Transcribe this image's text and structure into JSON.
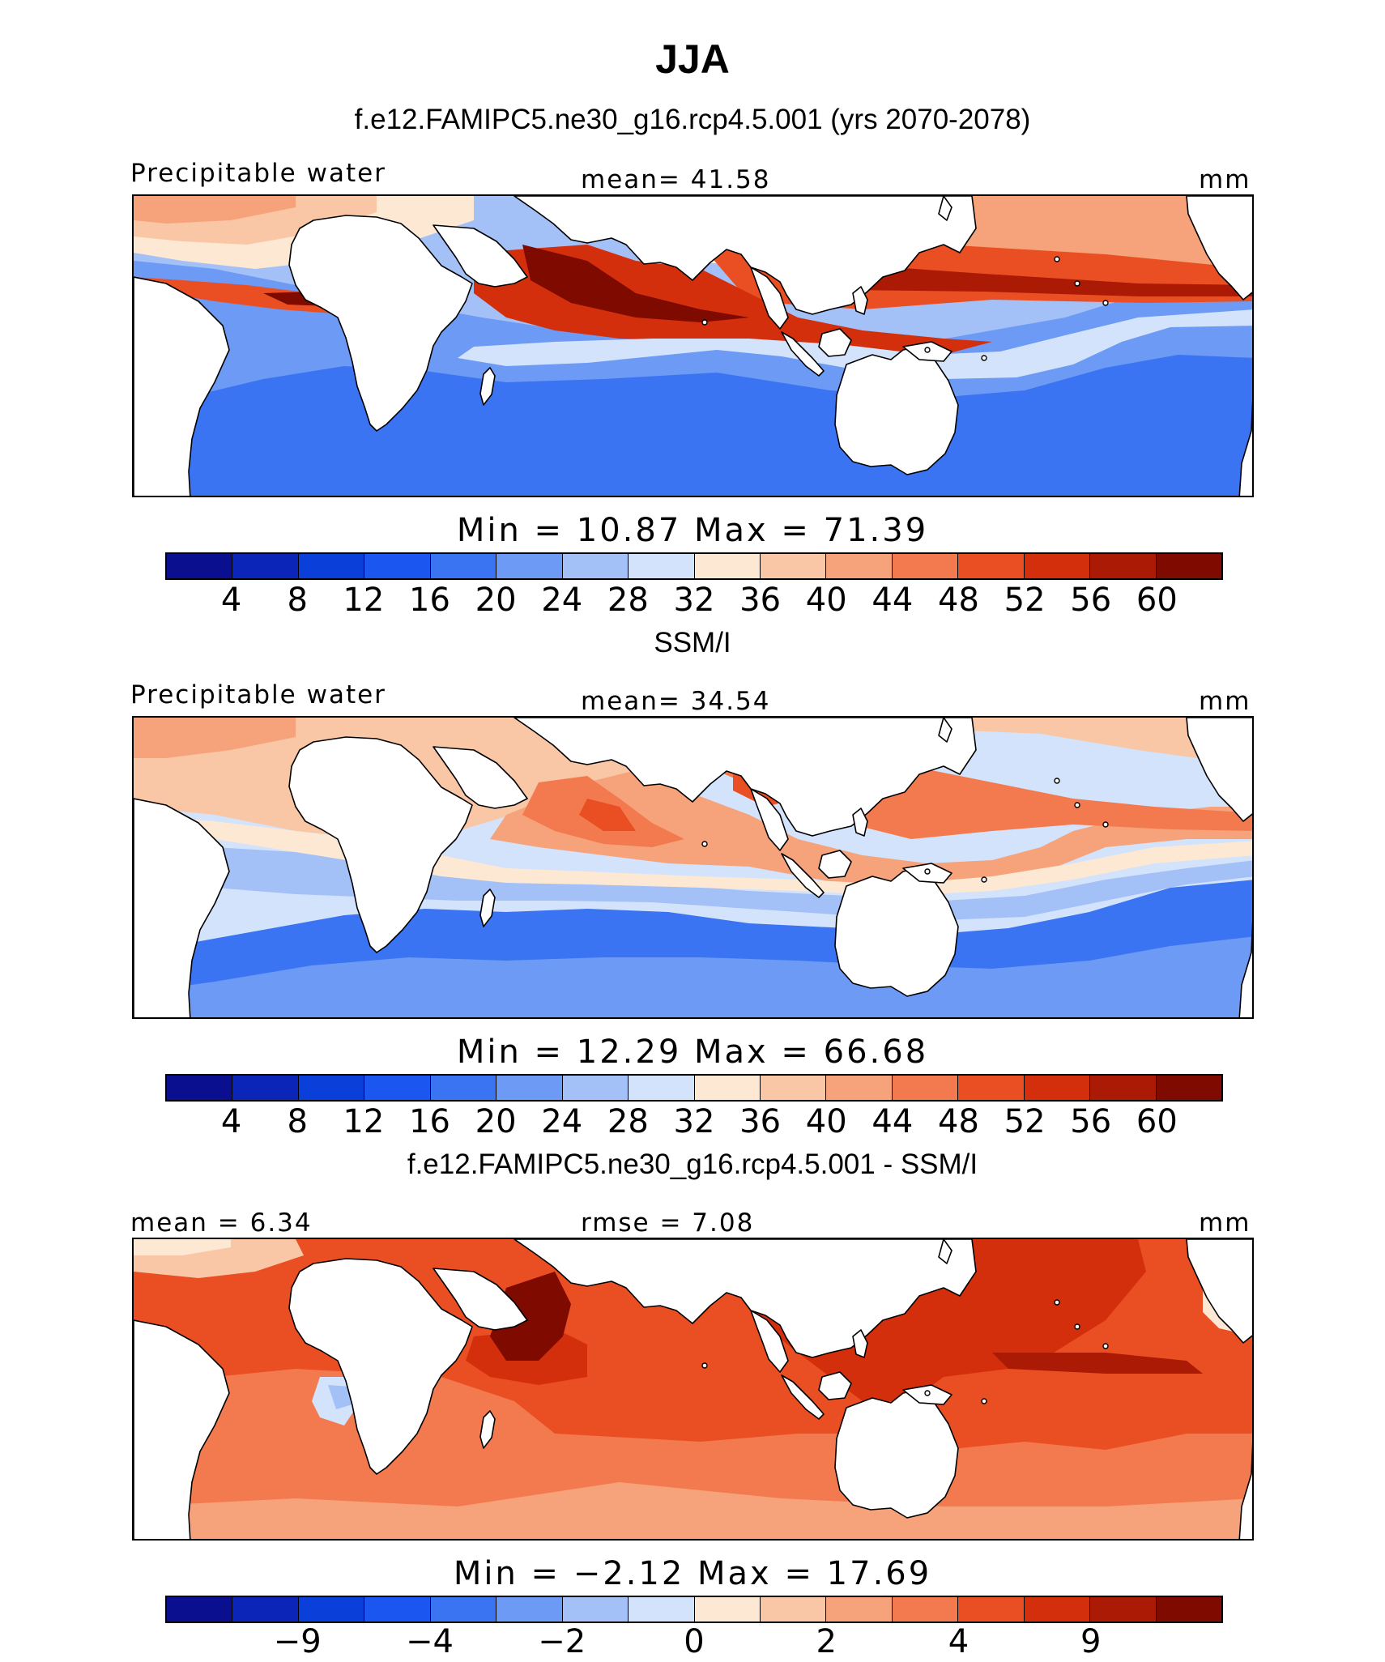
{
  "title": "JJA",
  "colors": {
    "scale": [
      "#0a0f8f",
      "#0a25b8",
      "#0b3fd9",
      "#1c56f0",
      "#3b74f2",
      "#6d9af5",
      "#a3c0f7",
      "#d3e3fb",
      "#fde8d3",
      "#f9c7a6",
      "#f6a27a",
      "#f37a4e",
      "#ea4f23",
      "#d42f0c",
      "#aa1a04",
      "#7e0a00"
    ],
    "land": "#ffffff",
    "coast": "#000000"
  },
  "panels": [
    {
      "title": "f.e12.FAMIPC5.ne30_g16.rcp4.5.001 (yrs 2070-2078)",
      "left_label": "Precipitable water",
      "center_label": "mean=   41.58",
      "units": "mm",
      "minmax": "Min =    10.87  Max =    71.39",
      "colorbar_ticks": [
        "4",
        "8",
        "12",
        "16",
        "20",
        "24",
        "28",
        "32",
        "36",
        "40",
        "44",
        "48",
        "52",
        "56",
        "60"
      ]
    },
    {
      "title": "SSM/I",
      "left_label": "Precipitable water",
      "center_label": "mean=   34.54",
      "units": "mm",
      "minmax": "Min =    12.29  Max =    66.68",
      "colorbar_ticks": [
        "4",
        "8",
        "12",
        "16",
        "20",
        "24",
        "28",
        "32",
        "36",
        "40",
        "44",
        "48",
        "52",
        "56",
        "60"
      ]
    },
    {
      "title": "f.e12.FAMIPC5.ne30_g16.rcp4.5.001 - SSM/I",
      "left_label": "mean =     6.34",
      "center_label": "rmse =     7.08",
      "units": "mm",
      "minmax": "Min =   −2.12  Max =    17.69",
      "colorbar_ticks": [
        "−9",
        "−4",
        "−2",
        "0",
        "2",
        "4",
        "9"
      ]
    }
  ],
  "chart_data": [
    {
      "type": "heatmap",
      "title": "f.e12.FAMIPC5.ne30_g16.rcp4.5.001 (yrs 2070-2078)",
      "variable": "Precipitable water",
      "units": "mm",
      "mean": 41.58,
      "min": 10.87,
      "max": 71.39,
      "contour_levels": [
        4,
        8,
        12,
        16,
        20,
        24,
        28,
        32,
        36,
        40,
        44,
        48,
        52,
        56,
        60
      ],
      "longitude_range": [
        -60,
        300
      ],
      "latitude_range": [
        -40,
        40
      ]
    },
    {
      "type": "heatmap",
      "title": "SSM/I",
      "variable": "Precipitable water",
      "units": "mm",
      "mean": 34.54,
      "min": 12.29,
      "max": 66.68,
      "contour_levels": [
        4,
        8,
        12,
        16,
        20,
        24,
        28,
        32,
        36,
        40,
        44,
        48,
        52,
        56,
        60
      ],
      "longitude_range": [
        -60,
        300
      ],
      "latitude_range": [
        -40,
        40
      ]
    },
    {
      "type": "heatmap",
      "title": "f.e12.FAMIPC5.ne30_g16.rcp4.5.001 - SSM/I",
      "units": "mm",
      "mean": 6.34,
      "rmse": 7.08,
      "min": -2.12,
      "max": 17.69,
      "contour_levels": [
        -9,
        -4,
        -2,
        0,
        2,
        4,
        9
      ],
      "longitude_range": [
        -60,
        300
      ],
      "latitude_range": [
        -40,
        40
      ]
    }
  ]
}
